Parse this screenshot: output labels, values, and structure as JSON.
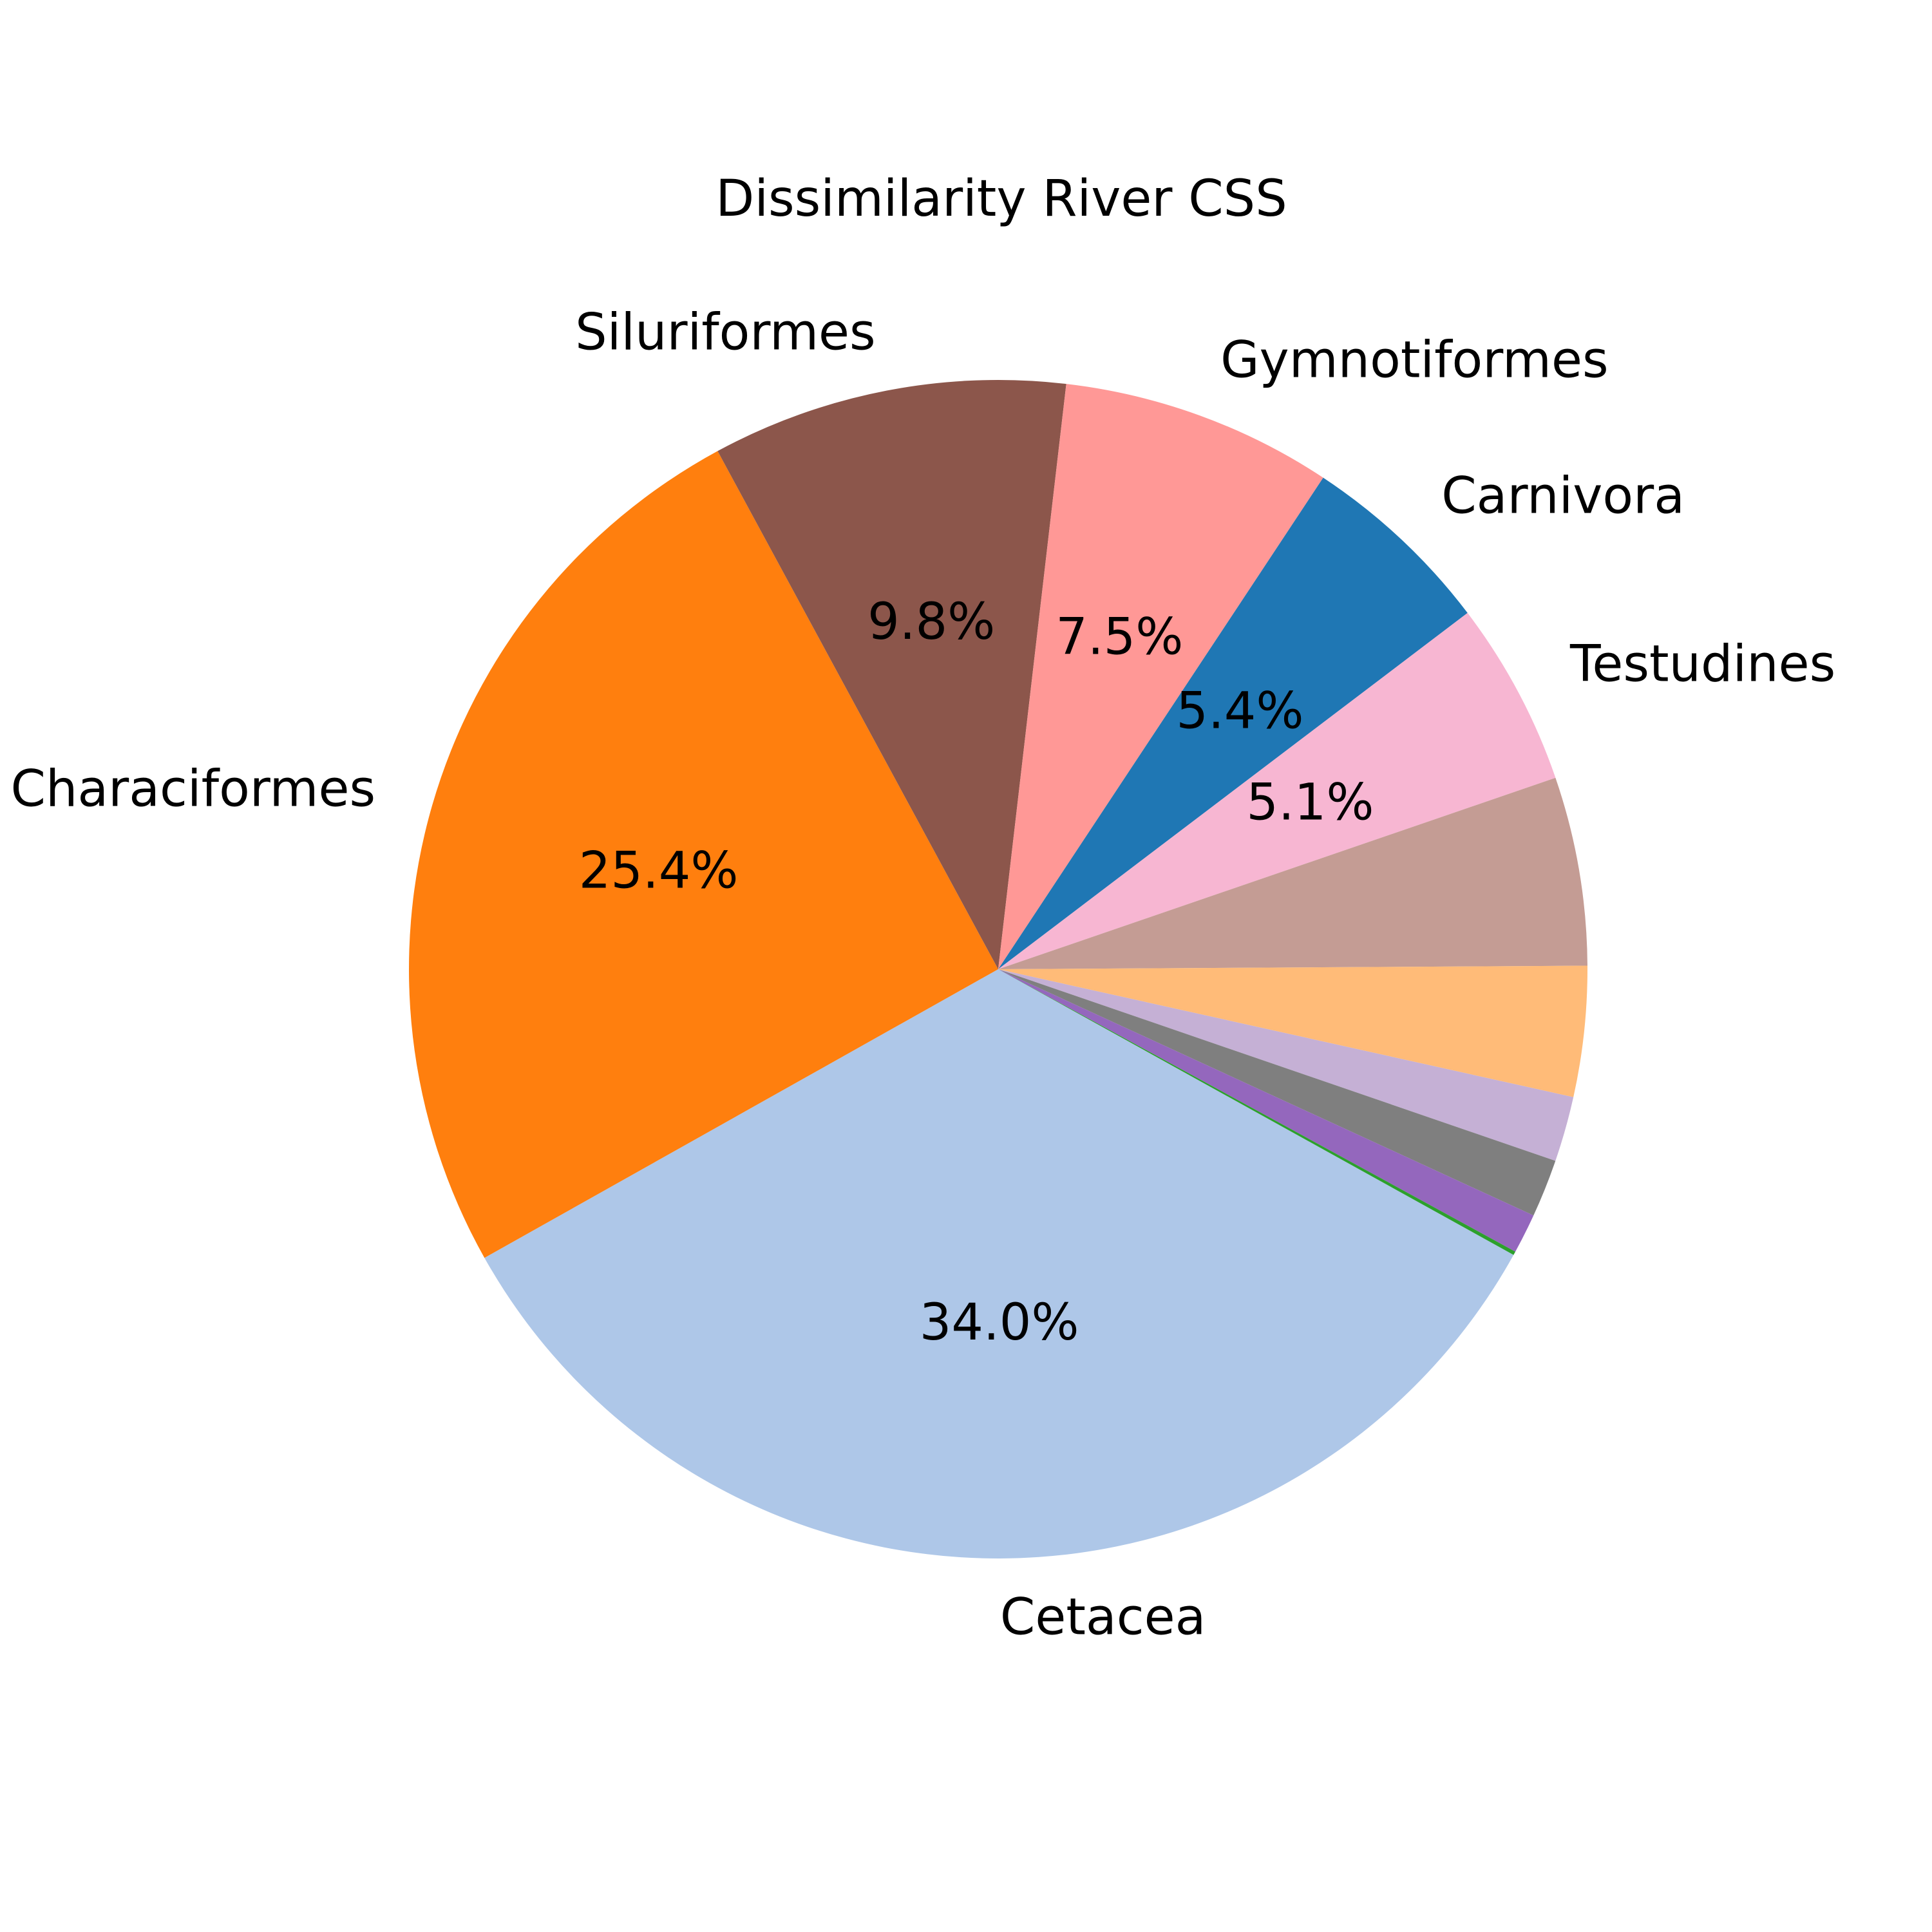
{
  "chart_data": {
    "type": "pie",
    "title": "Dissimilarity River CSS",
    "slices": [
      {
        "label": "Cetacea",
        "value": 34.0,
        "pct_label": "34.0%",
        "color": "#aec7e8"
      },
      {
        "label": "Characiformes",
        "value": 25.4,
        "pct_label": "25.4%",
        "color": "#ff7f0e"
      },
      {
        "label": "Siluriformes",
        "value": 9.8,
        "pct_label": "9.8%",
        "color": "#8c564b"
      },
      {
        "label": "Gymnotiformes",
        "value": 7.5,
        "pct_label": "7.5%",
        "color": "#ff9896"
      },
      {
        "label": "Carnivora",
        "value": 5.4,
        "pct_label": "5.4%",
        "color": "#1f77b4"
      },
      {
        "label": "Testudines",
        "value": 5.1,
        "pct_label": "5.1%",
        "color": "#f7b6d2"
      },
      {
        "label": "",
        "value": 5.2,
        "pct_label": "",
        "color": "#c49c94"
      },
      {
        "label": "",
        "value": 3.6,
        "pct_label": "",
        "color": "#ffbb78"
      },
      {
        "label": "",
        "value": 1.8,
        "pct_label": "",
        "color": "#c5b0d5"
      },
      {
        "label": "",
        "value": 1.6,
        "pct_label": "",
        "color": "#7f7f7f"
      },
      {
        "label": "",
        "value": 1.1,
        "pct_label": "",
        "color": "#9467bd"
      },
      {
        "label": "",
        "value": 0.1,
        "pct_label": "",
        "color": "#2ca02c"
      }
    ],
    "start_angle_deg": -29,
    "direction": "clockwise",
    "legend": "none"
  }
}
